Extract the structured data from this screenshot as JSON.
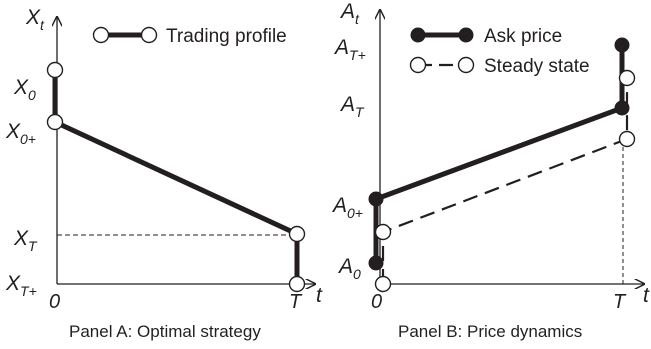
{
  "chart_data": [
    {
      "type": "line",
      "caption": "Panel  A: Optimal strategy",
      "xlabel": "t",
      "ylabel": "X_t",
      "x_ticks": [
        {
          "key": "zero",
          "main": "0",
          "sub": ""
        },
        {
          "key": "T",
          "main": "T",
          "sub": ""
        }
      ],
      "y_ticks": [
        {
          "key": "X0",
          "main": "X",
          "sub": "0"
        },
        {
          "key": "X0p",
          "main": "X",
          "sub": "0+"
        },
        {
          "key": "XT",
          "main": "X",
          "sub": "T"
        },
        {
          "key": "XTp",
          "main": "X",
          "sub": "T+"
        }
      ],
      "legend": [
        {
          "name": "Trading profile",
          "style": "solid-open"
        }
      ],
      "series": [
        {
          "name": "Trading profile",
          "points": [
            {
              "x": "zero",
              "y": "X0",
              "marker": "open"
            },
            {
              "x": "zero",
              "y": "X0p",
              "marker": "open"
            },
            {
              "x": "T",
              "y": "XT",
              "marker": "open"
            },
            {
              "x": "T",
              "y": "XTp",
              "marker": "open"
            }
          ]
        }
      ],
      "guides": [
        {
          "from": {
            "x": "zero",
            "y": "XT"
          },
          "to": {
            "x": "T",
            "y": "XT"
          }
        }
      ]
    },
    {
      "type": "line",
      "caption": "Panel  B: Price dynamics",
      "xlabel": "t",
      "ylabel": "A_t",
      "x_ticks": [
        {
          "key": "zero",
          "main": "0",
          "sub": ""
        },
        {
          "key": "T",
          "main": "T",
          "sub": ""
        }
      ],
      "y_ticks": [
        {
          "key": "ATp",
          "main": "A",
          "sub": "T+"
        },
        {
          "key": "AT",
          "main": "A",
          "sub": "T"
        },
        {
          "key": "A0p",
          "main": "A",
          "sub": "0+"
        },
        {
          "key": "A0",
          "main": "A",
          "sub": "0"
        }
      ],
      "legend": [
        {
          "name": "Ask price",
          "style": "solid-filled"
        },
        {
          "name": "Steady state",
          "style": "dashed-open"
        }
      ],
      "series": [
        {
          "name": "Ask price",
          "style": "solid-filled",
          "points": [
            {
              "x": "zero",
              "y": "A0"
            },
            {
              "x": "zero",
              "y": "A0p"
            },
            {
              "x": "T",
              "y": "AT"
            },
            {
              "x": "T",
              "y": "ATp"
            }
          ]
        },
        {
          "name": "Steady state",
          "style": "dashed-open",
          "points": [
            {
              "x": "zero",
              "y": "A0"
            },
            {
              "x": "zero",
              "y": "A0p"
            },
            {
              "x": "T",
              "y": "AT"
            },
            {
              "x": "T",
              "y": "ATp"
            }
          ],
          "note": "open markers; level rises from below A_0 at t=0 to between A_0+ and A_T at T"
        }
      ]
    }
  ]
}
